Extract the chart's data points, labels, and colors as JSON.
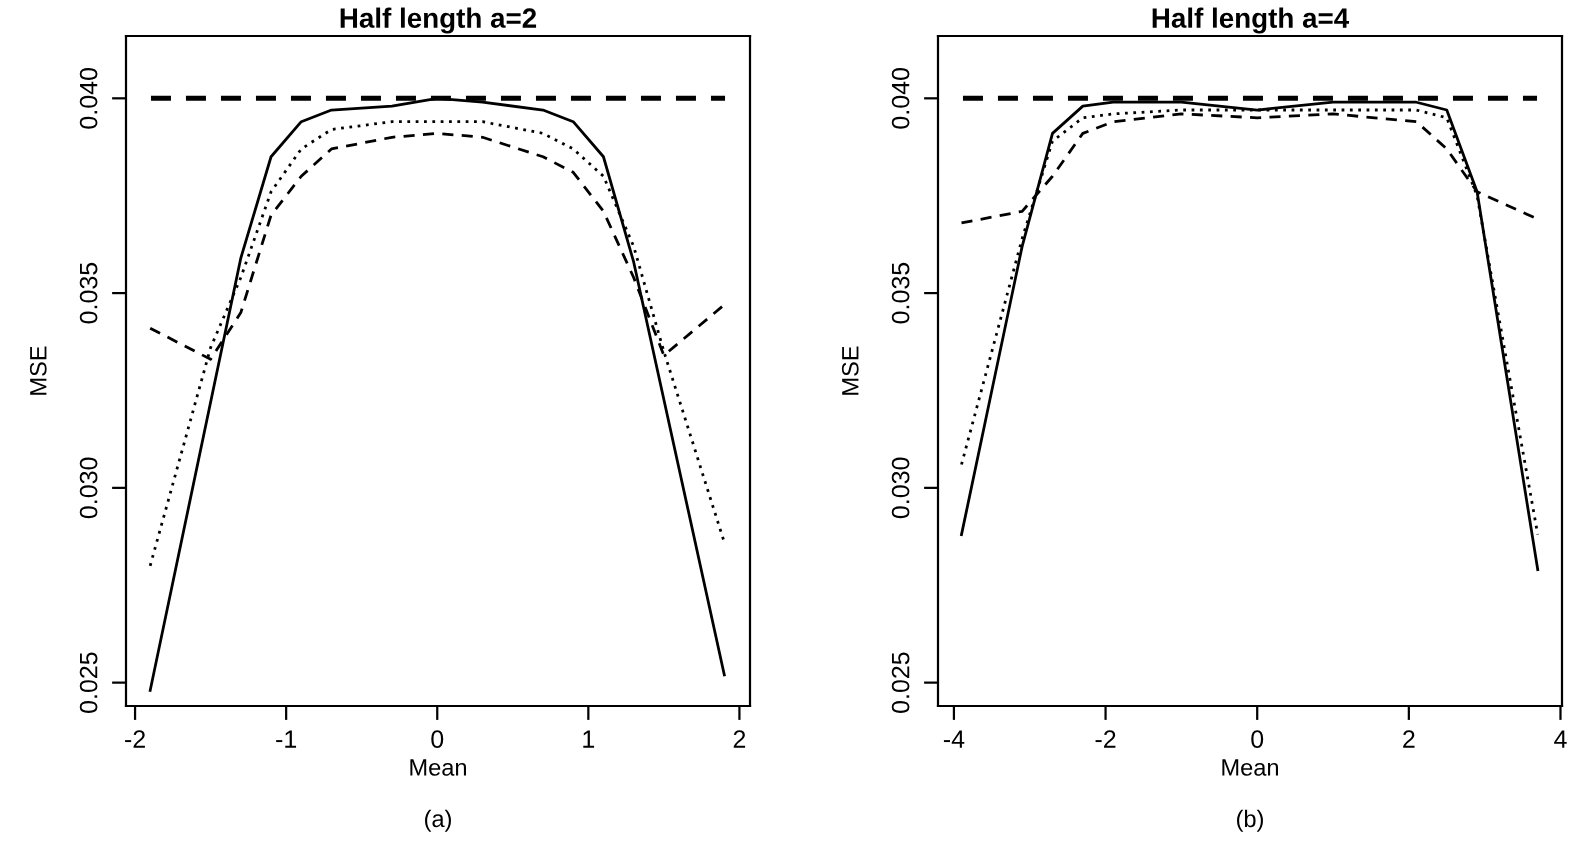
{
  "chart_data": [
    {
      "type": "line",
      "title": "Half length a=2",
      "xlabel": "Mean",
      "ylabel": "MSE",
      "annotations": [
        "(a)"
      ],
      "xlim": [
        -2.06,
        2.07
      ],
      "ylim": [
        0.0244,
        0.0416
      ],
      "xticks": [
        -2,
        -1,
        0,
        1,
        2
      ],
      "yticks": [
        {
          "value": 0.025,
          "label": "0.025"
        },
        {
          "value": 0.03,
          "label": "0.030"
        },
        {
          "value": 0.035,
          "label": "0.035"
        },
        {
          "value": 0.04,
          "label": "0.040"
        }
      ],
      "grid": false,
      "legend": false,
      "marker": "none",
      "ref_lines": [
        {
          "axis": "y",
          "value": 0.04,
          "color": "#000000",
          "line_style": "dashed"
        }
      ],
      "series": [
        {
          "color": "#000000",
          "line_style": "solid",
          "x": [
            -1.9,
            -1.3,
            -1.1,
            -0.9,
            -0.7,
            -0.3,
            0,
            0.3,
            0.7,
            0.9,
            1.1,
            1.3,
            1.9
          ],
          "values": [
            0.0248,
            0.0359,
            0.0385,
            0.0394,
            0.0397,
            0.0398,
            0.04,
            0.0399,
            0.0397,
            0.0394,
            0.0385,
            0.0358,
            0.0252
          ]
        },
        {
          "color": "#000000",
          "line_style": "dotted",
          "x": [
            -1.9,
            -1.5,
            -1.3,
            -1.1,
            -0.9,
            -0.7,
            -0.3,
            0,
            0.3,
            0.7,
            0.9,
            1.1,
            1.3,
            1.5,
            1.9
          ],
          "values": [
            0.028,
            0.0336,
            0.0354,
            0.0376,
            0.0387,
            0.0392,
            0.0394,
            0.0394,
            0.0394,
            0.0391,
            0.0387,
            0.038,
            0.0362,
            0.0335,
            0.0286
          ]
        },
        {
          "color": "#000000",
          "line_style": "dashed",
          "x": [
            -1.9,
            -1.5,
            -1.3,
            -1.1,
            -0.9,
            -0.7,
            -0.3,
            0,
            0.3,
            0.7,
            0.9,
            1.1,
            1.3,
            1.5,
            1.9
          ],
          "values": [
            0.0341,
            0.0333,
            0.0345,
            0.037,
            0.038,
            0.0387,
            0.039,
            0.0391,
            0.039,
            0.0385,
            0.0381,
            0.0371,
            0.0354,
            0.0334,
            0.0347
          ]
        }
      ]
    },
    {
      "type": "line",
      "title": "Half length a=4",
      "xlabel": "Mean",
      "ylabel": "MSE",
      "annotations": [
        "(b)"
      ],
      "xlim": [
        -4.21,
        4.02
      ],
      "ylim": [
        0.0244,
        0.0416
      ],
      "xticks": [
        -4,
        -2,
        0,
        2,
        4
      ],
      "yticks": [
        {
          "value": 0.025,
          "label": "0.025"
        },
        {
          "value": 0.03,
          "label": "0.030"
        },
        {
          "value": 0.035,
          "label": "0.035"
        },
        {
          "value": 0.04,
          "label": "0.040"
        }
      ],
      "grid": false,
      "legend": false,
      "marker": "none",
      "ref_lines": [
        {
          "axis": "y",
          "value": 0.04,
          "color": "#000000",
          "line_style": "dashed"
        }
      ],
      "series": [
        {
          "color": "#000000",
          "line_style": "solid",
          "x": [
            -3.9,
            -3.1,
            -2.7,
            -2.3,
            -1.9,
            -1,
            0,
            1,
            2.1,
            2.5,
            2.9,
            3.7
          ],
          "values": [
            0.0288,
            0.0362,
            0.0391,
            0.0398,
            0.0399,
            0.0399,
            0.0397,
            0.0399,
            0.0399,
            0.0397,
            0.0376,
            0.0279
          ]
        },
        {
          "color": "#000000",
          "line_style": "dotted",
          "x": [
            -3.9,
            -3.1,
            -2.7,
            -2.3,
            -1.9,
            -1,
            0,
            1,
            2.1,
            2.5,
            2.9,
            3.7
          ],
          "values": [
            0.0306,
            0.0364,
            0.0389,
            0.0395,
            0.0396,
            0.0397,
            0.0397,
            0.0397,
            0.0397,
            0.0395,
            0.0375,
            0.0288
          ]
        },
        {
          "color": "#000000",
          "line_style": "dashed",
          "x": [
            -3.9,
            -3.1,
            -2.7,
            -2.3,
            -1.9,
            -1,
            0,
            1,
            2.1,
            2.5,
            2.9,
            3.7
          ],
          "values": [
            0.0368,
            0.0371,
            0.038,
            0.0391,
            0.0394,
            0.0396,
            0.0395,
            0.0396,
            0.0394,
            0.0387,
            0.0376,
            0.0369
          ]
        }
      ]
    }
  ]
}
